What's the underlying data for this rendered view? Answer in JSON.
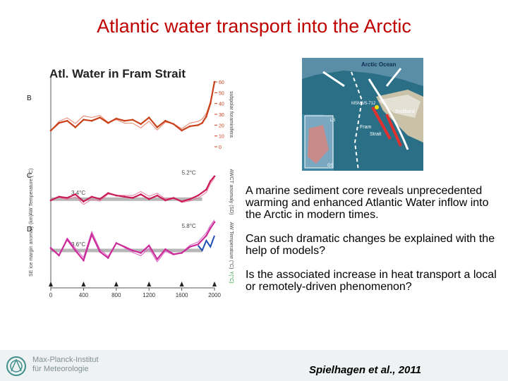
{
  "slide": {
    "title": "Atlantic water transport into the Arctic",
    "bullets": [
      "A marine sediment core reveals unprecedented warming and enhanced Atlantic Water inflow into the Arctic in modern times.",
      "Can such dramatic changes be explained with the help of models?",
      "Is the associated increase in heat transport a local or remotely-driven phenomenon?"
    ],
    "citation": "Spielhagen et al., 2011",
    "institute_line1": "Max-Planck-Institut",
    "institute_line2": "für Meteorologie"
  },
  "map": {
    "labels": [
      "Arctic Ocean",
      "MSM5/5-712",
      "Svalbard",
      "Fram",
      "Strait",
      "LS",
      "GS"
    ]
  },
  "chart_data": {
    "type": "line",
    "title": "Atl. Water in Fram Strait",
    "xlim": [
      0,
      2000
    ],
    "x_ticks": [
      0,
      400,
      800,
      1200,
      1600,
      2000
    ],
    "panels": [
      {
        "id": "B",
        "right_axis_label": "subpolar foraminifera",
        "right_ticks": [
          0,
          10,
          20,
          30,
          40,
          50,
          60
        ],
        "colors": {
          "thin": "#e8826a",
          "bold": "#c9401a"
        },
        "x": [
          0,
          100,
          200,
          300,
          400,
          500,
          600,
          700,
          800,
          900,
          1000,
          1100,
          1200,
          1300,
          1400,
          1500,
          1600,
          1700,
          1800,
          1850,
          1900,
          1950,
          2000
        ],
        "values": [
          15,
          22,
          24,
          18,
          25,
          24,
          27,
          22,
          26,
          24,
          25,
          21,
          27,
          18,
          24,
          21,
          15,
          19,
          20,
          22,
          28,
          40,
          60
        ]
      },
      {
        "id": "C",
        "left_axis_label": "AW Temperature (°C)",
        "right_axis_label": "AWCT anomaly (SD)",
        "annotations": [
          "3.4°C",
          "5.2°C"
        ],
        "colors": {
          "thin": "#e67aa0",
          "bold": "#cc1a52",
          "band": "#9a9a9a"
        },
        "x": [
          0,
          100,
          200,
          300,
          400,
          500,
          600,
          700,
          800,
          900,
          1000,
          1100,
          1200,
          1300,
          1400,
          1500,
          1600,
          1700,
          1800,
          1900,
          1950,
          2000
        ],
        "values": [
          3.3,
          3.6,
          3.5,
          3.8,
          3.2,
          3.6,
          3.4,
          3.9,
          3.7,
          3.6,
          3.5,
          3.8,
          3.4,
          3.7,
          3.3,
          3.5,
          3.2,
          3.4,
          3.7,
          4.2,
          4.9,
          5.3
        ]
      },
      {
        "id": "D",
        "left_axis_label": "SE ice margin anomaly (km)",
        "right_axis_label": "AW Temperature (°C)",
        "annotations": [
          "3.6°C",
          "5.8°C"
        ],
        "colors": {
          "thin": "#d860c0",
          "bold": "#cc2a99",
          "band": "#9a9a9a",
          "blue": "#1f4fb5"
        },
        "x": [
          0,
          100,
          200,
          300,
          400,
          500,
          600,
          700,
          800,
          900,
          1000,
          1100,
          1200,
          1300,
          1400,
          1500,
          1600,
          1700,
          1800,
          1900,
          1950,
          2000
        ],
        "values": [
          3.8,
          3.2,
          4.5,
          3.6,
          2.8,
          4.9,
          3.5,
          3.0,
          4.2,
          3.9,
          3.6,
          3.4,
          4.0,
          2.9,
          3.7,
          3.3,
          3.4,
          3.9,
          4.1,
          4.8,
          5.4,
          5.9
        ]
      },
      {
        "id": "E",
        "right_axis_label": "Y(°C)"
      }
    ]
  }
}
